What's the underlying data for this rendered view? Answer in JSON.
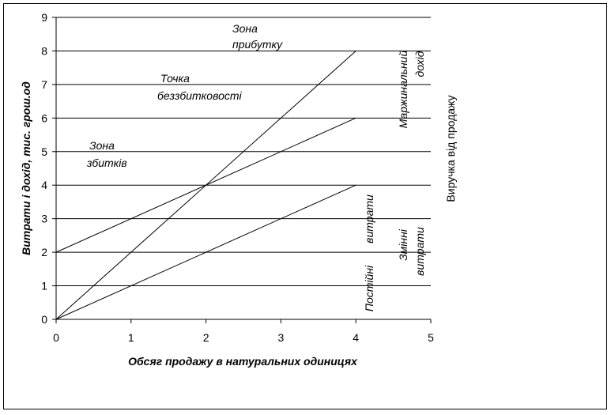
{
  "chart_data": {
    "type": "line",
    "title": "",
    "xlabel": "Обсяг продажу в натуральних одиницях",
    "ylabel": "Витрати і дохід, тис. грош.од",
    "xlim": [
      0,
      5
    ],
    "ylim": [
      0,
      9
    ],
    "x_ticks": [
      "0",
      "1",
      "2",
      "3",
      "4",
      "5"
    ],
    "y_ticks": [
      "0",
      "1",
      "2",
      "3",
      "4",
      "5",
      "6",
      "7",
      "8",
      "9"
    ],
    "grid": "horizontal",
    "legend": "none",
    "series": [
      {
        "x": [
          0,
          4
        ],
        "y": [
          0,
          8
        ]
      },
      {
        "x": [
          0,
          4
        ],
        "y": [
          2,
          6
        ]
      },
      {
        "x": [
          0,
          4
        ],
        "y": [
          0,
          4
        ]
      }
    ],
    "annotations": {
      "zone_profit": [
        "Зона",
        "прибутку"
      ],
      "breakeven": [
        "Точка",
        "беззбитковості"
      ],
      "zone_loss": [
        "Зона",
        "збитків"
      ],
      "marginal_income": [
        "Маржинальний",
        "дохід"
      ],
      "fixed_costs": [
        "Постійні",
        "витрати"
      ],
      "variable_costs": [
        "Змінні",
        "витрати"
      ],
      "revenue": "Виручка від продажу"
    }
  }
}
